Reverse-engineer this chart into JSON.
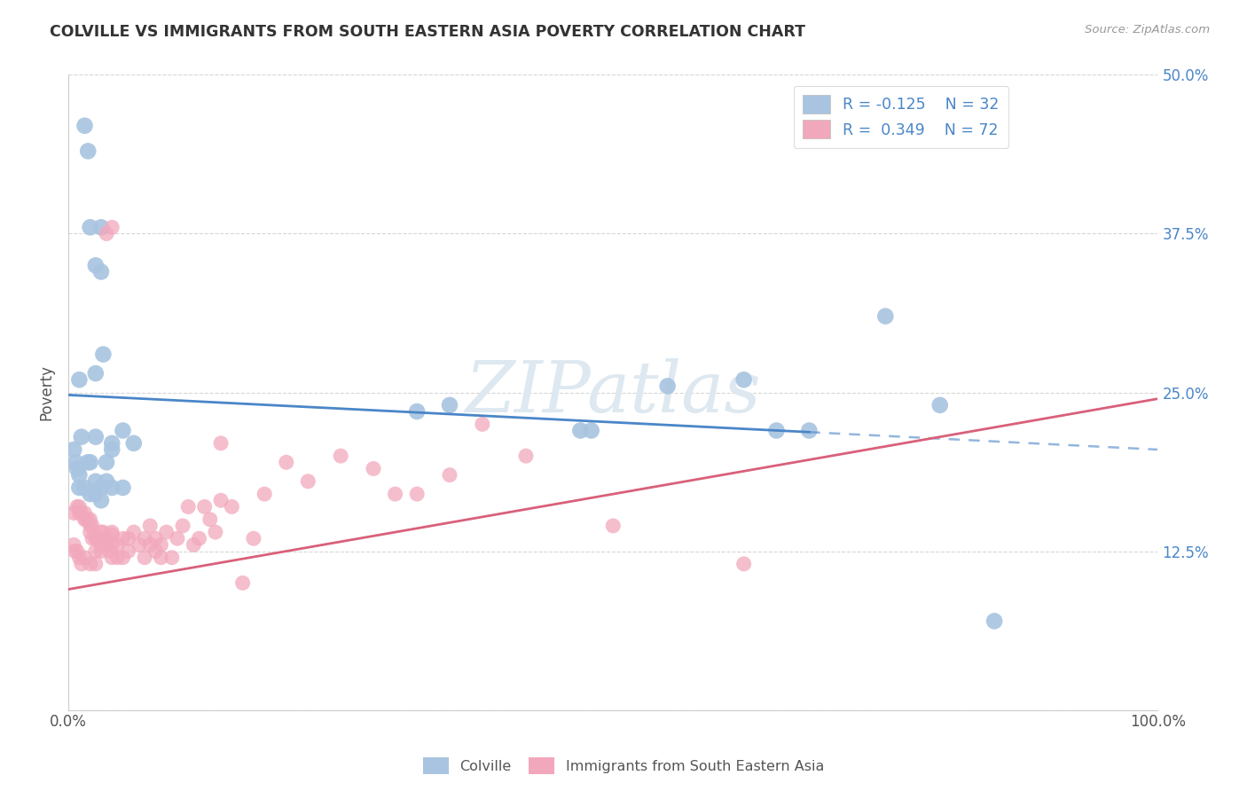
{
  "title": "COLVILLE VS IMMIGRANTS FROM SOUTH EASTERN ASIA POVERTY CORRELATION CHART",
  "source": "Source: ZipAtlas.com",
  "ylabel": "Poverty",
  "xlim": [
    0,
    1.0
  ],
  "ylim": [
    0,
    0.5
  ],
  "series1_color": "#a8c4e0",
  "series2_color": "#f2a8bc",
  "line1_color": "#4a86c8",
  "line2_color": "#d9607a",
  "line1_start_y": 0.248,
  "line1_end_y": 0.205,
  "line2_start_y": 0.095,
  "line2_end_y": 0.245,
  "line1_solid_end": 0.68,
  "watermark_text": "ZIPatlas",
  "colville_points": [
    [
      0.01,
      0.26
    ],
    [
      0.012,
      0.215
    ],
    [
      0.018,
      0.195
    ],
    [
      0.02,
      0.195
    ],
    [
      0.025,
      0.265
    ],
    [
      0.025,
      0.215
    ],
    [
      0.03,
      0.38
    ],
    [
      0.03,
      0.345
    ],
    [
      0.032,
      0.28
    ],
    [
      0.04,
      0.205
    ],
    [
      0.04,
      0.21
    ],
    [
      0.05,
      0.22
    ],
    [
      0.06,
      0.21
    ],
    [
      0.015,
      0.46
    ],
    [
      0.018,
      0.44
    ],
    [
      0.02,
      0.38
    ],
    [
      0.025,
      0.35
    ],
    [
      0.005,
      0.205
    ],
    [
      0.007,
      0.195
    ],
    [
      0.008,
      0.19
    ],
    [
      0.01,
      0.185
    ],
    [
      0.01,
      0.175
    ],
    [
      0.015,
      0.175
    ],
    [
      0.02,
      0.17
    ],
    [
      0.025,
      0.18
    ],
    [
      0.025,
      0.17
    ],
    [
      0.03,
      0.175
    ],
    [
      0.03,
      0.165
    ],
    [
      0.035,
      0.195
    ],
    [
      0.035,
      0.18
    ],
    [
      0.04,
      0.175
    ],
    [
      0.05,
      0.175
    ],
    [
      0.55,
      0.255
    ],
    [
      0.62,
      0.26
    ],
    [
      0.65,
      0.22
    ],
    [
      0.68,
      0.22
    ],
    [
      0.75,
      0.31
    ],
    [
      0.8,
      0.24
    ],
    [
      0.85,
      0.07
    ],
    [
      0.47,
      0.22
    ],
    [
      0.48,
      0.22
    ],
    [
      0.32,
      0.235
    ],
    [
      0.35,
      0.24
    ]
  ],
  "immigrants_points": [
    [
      0.005,
      0.155
    ],
    [
      0.008,
      0.16
    ],
    [
      0.01,
      0.16
    ],
    [
      0.01,
      0.155
    ],
    [
      0.012,
      0.155
    ],
    [
      0.015,
      0.155
    ],
    [
      0.015,
      0.15
    ],
    [
      0.016,
      0.15
    ],
    [
      0.018,
      0.15
    ],
    [
      0.02,
      0.145
    ],
    [
      0.02,
      0.14
    ],
    [
      0.02,
      0.15
    ],
    [
      0.022,
      0.135
    ],
    [
      0.022,
      0.145
    ],
    [
      0.025,
      0.125
    ],
    [
      0.025,
      0.135
    ],
    [
      0.027,
      0.135
    ],
    [
      0.03,
      0.13
    ],
    [
      0.03,
      0.125
    ],
    [
      0.03,
      0.14
    ],
    [
      0.032,
      0.14
    ],
    [
      0.035,
      0.135
    ],
    [
      0.035,
      0.13
    ],
    [
      0.038,
      0.125
    ],
    [
      0.04,
      0.12
    ],
    [
      0.04,
      0.13
    ],
    [
      0.04,
      0.138
    ],
    [
      0.04,
      0.14
    ],
    [
      0.045,
      0.12
    ],
    [
      0.045,
      0.13
    ],
    [
      0.05,
      0.135
    ],
    [
      0.05,
      0.12
    ],
    [
      0.055,
      0.125
    ],
    [
      0.055,
      0.135
    ],
    [
      0.06,
      0.14
    ],
    [
      0.065,
      0.13
    ],
    [
      0.07,
      0.12
    ],
    [
      0.07,
      0.135
    ],
    [
      0.075,
      0.145
    ],
    [
      0.075,
      0.13
    ],
    [
      0.08,
      0.125
    ],
    [
      0.08,
      0.135
    ],
    [
      0.085,
      0.12
    ],
    [
      0.085,
      0.13
    ],
    [
      0.09,
      0.14
    ],
    [
      0.095,
      0.12
    ],
    [
      0.1,
      0.135
    ],
    [
      0.105,
      0.145
    ],
    [
      0.11,
      0.16
    ],
    [
      0.115,
      0.13
    ],
    [
      0.12,
      0.135
    ],
    [
      0.125,
      0.16
    ],
    [
      0.13,
      0.15
    ],
    [
      0.135,
      0.14
    ],
    [
      0.14,
      0.165
    ],
    [
      0.15,
      0.16
    ],
    [
      0.16,
      0.1
    ],
    [
      0.17,
      0.135
    ],
    [
      0.18,
      0.17
    ],
    [
      0.2,
      0.195
    ],
    [
      0.22,
      0.18
    ],
    [
      0.25,
      0.2
    ],
    [
      0.28,
      0.19
    ],
    [
      0.3,
      0.17
    ],
    [
      0.32,
      0.17
    ],
    [
      0.35,
      0.185
    ],
    [
      0.38,
      0.225
    ],
    [
      0.42,
      0.2
    ],
    [
      0.5,
      0.145
    ],
    [
      0.62,
      0.115
    ],
    [
      0.035,
      0.375
    ],
    [
      0.04,
      0.38
    ],
    [
      0.14,
      0.21
    ],
    [
      0.005,
      0.13
    ],
    [
      0.006,
      0.125
    ],
    [
      0.008,
      0.125
    ],
    [
      0.01,
      0.12
    ],
    [
      0.012,
      0.115
    ],
    [
      0.015,
      0.12
    ],
    [
      0.02,
      0.115
    ],
    [
      0.025,
      0.115
    ]
  ]
}
